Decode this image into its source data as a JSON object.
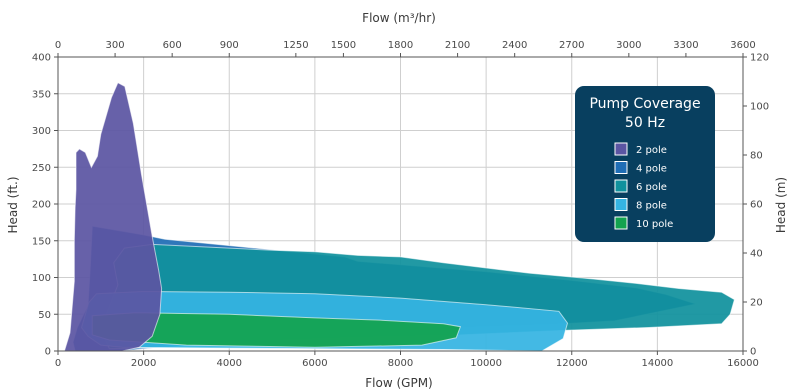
{
  "chart_data": {
    "type": "area",
    "title": "Pump Coverage",
    "subtitle": "50 Hz",
    "xlabel": "Flow (GPM)",
    "x2label": "Flow (m³/hr)",
    "ylabel": "Head (ft.)",
    "y2label": "Head (m)",
    "xlim": [
      0,
      16000
    ],
    "ylim": [
      0,
      400
    ],
    "x2lim": [
      0,
      3600
    ],
    "y2lim": [
      0,
      120
    ],
    "xticks": [
      0,
      2000,
      4000,
      6000,
      8000,
      10000,
      12000,
      14000,
      16000
    ],
    "yticks": [
      0,
      50,
      100,
      150,
      200,
      250,
      300,
      350,
      400
    ],
    "x2ticks": [
      0,
      300,
      600,
      900,
      1250,
      1500,
      1800,
      2100,
      2400,
      2700,
      3000,
      3300,
      3600
    ],
    "y2ticks": [
      0,
      20,
      40,
      60,
      80,
      100,
      120
    ],
    "grid": true,
    "legend_position": "top-right",
    "series": [
      {
        "name": "2 pole",
        "color": "#5b55a3",
        "points": [
          [
            150,
            0
          ],
          [
            280,
            25
          ],
          [
            380,
            95
          ],
          [
            380,
            150
          ],
          [
            400,
            195
          ],
          [
            420,
            220
          ],
          [
            420,
            270
          ],
          [
            500,
            275
          ],
          [
            640,
            270
          ],
          [
            780,
            250
          ],
          [
            920,
            265
          ],
          [
            1000,
            295
          ],
          [
            1100,
            315
          ],
          [
            1250,
            345
          ],
          [
            1400,
            365
          ],
          [
            1560,
            360
          ],
          [
            1760,
            310
          ],
          [
            1950,
            240
          ],
          [
            2100,
            190
          ],
          [
            2220,
            150
          ],
          [
            2350,
            110
          ],
          [
            2420,
            85
          ],
          [
            2380,
            50
          ],
          [
            2200,
            20
          ],
          [
            1900,
            5
          ],
          [
            1500,
            0
          ]
        ]
      },
      {
        "name": "4 pole",
        "color": "#1f6db5",
        "points": [
          [
            400,
            0
          ],
          [
            350,
            12
          ],
          [
            450,
            32
          ],
          [
            700,
            62
          ],
          [
            750,
            110
          ],
          [
            800,
            170
          ],
          [
            1300,
            165
          ],
          [
            2000,
            158
          ],
          [
            2500,
            152
          ],
          [
            6700,
            128
          ],
          [
            7000,
            122
          ],
          [
            10000,
            108
          ],
          [
            12000,
            96
          ],
          [
            13500,
            86
          ],
          [
            14200,
            77
          ],
          [
            14900,
            64
          ],
          [
            13000,
            41
          ],
          [
            11500,
            36
          ],
          [
            8000,
            29
          ],
          [
            4000,
            15
          ],
          [
            2400,
            5
          ],
          [
            1500,
            0
          ]
        ]
      },
      {
        "name": "6 pole",
        "color": "#10919d",
        "points": [
          [
            1550,
            140
          ],
          [
            2200,
            145
          ],
          [
            4000,
            140
          ],
          [
            5000,
            137
          ],
          [
            6000,
            135
          ],
          [
            7000,
            130
          ],
          [
            8000,
            128
          ],
          [
            9000,
            120
          ],
          [
            11000,
            106
          ],
          [
            12500,
            98
          ],
          [
            13500,
            92
          ],
          [
            14500,
            85
          ],
          [
            15500,
            80
          ],
          [
            15800,
            70
          ],
          [
            15700,
            50
          ],
          [
            15500,
            37
          ],
          [
            13800,
            32
          ],
          [
            11800,
            28
          ],
          [
            9000,
            21
          ],
          [
            7000,
            18
          ],
          [
            4000,
            12
          ],
          [
            2600,
            5
          ],
          [
            1200,
            3
          ],
          [
            1000,
            30
          ],
          [
            1400,
            90
          ],
          [
            1300,
            120
          ]
        ]
      },
      {
        "name": "8 pole",
        "color": "#35b4e2",
        "points": [
          [
            900,
            78
          ],
          [
            2000,
            81
          ],
          [
            4000,
            80
          ],
          [
            6000,
            78
          ],
          [
            8000,
            72
          ],
          [
            10000,
            63
          ],
          [
            11700,
            54
          ],
          [
            11900,
            38
          ],
          [
            11800,
            17
          ],
          [
            11300,
            0
          ],
          [
            9000,
            2
          ],
          [
            4000,
            4
          ],
          [
            1500,
            5
          ],
          [
            1000,
            8
          ],
          [
            700,
            20
          ],
          [
            550,
            32
          ],
          [
            620,
            46
          ],
          [
            720,
            66
          ]
        ]
      },
      {
        "name": "10 pole",
        "color": "#13a34f",
        "points": [
          [
            800,
            48
          ],
          [
            1800,
            52
          ],
          [
            4000,
            50
          ],
          [
            6000,
            45
          ],
          [
            7500,
            42
          ],
          [
            9000,
            37
          ],
          [
            9400,
            33
          ],
          [
            9300,
            18
          ],
          [
            8500,
            8
          ],
          [
            6000,
            5
          ],
          [
            3000,
            8
          ],
          [
            1200,
            15
          ],
          [
            800,
            22
          ]
        ]
      }
    ]
  }
}
